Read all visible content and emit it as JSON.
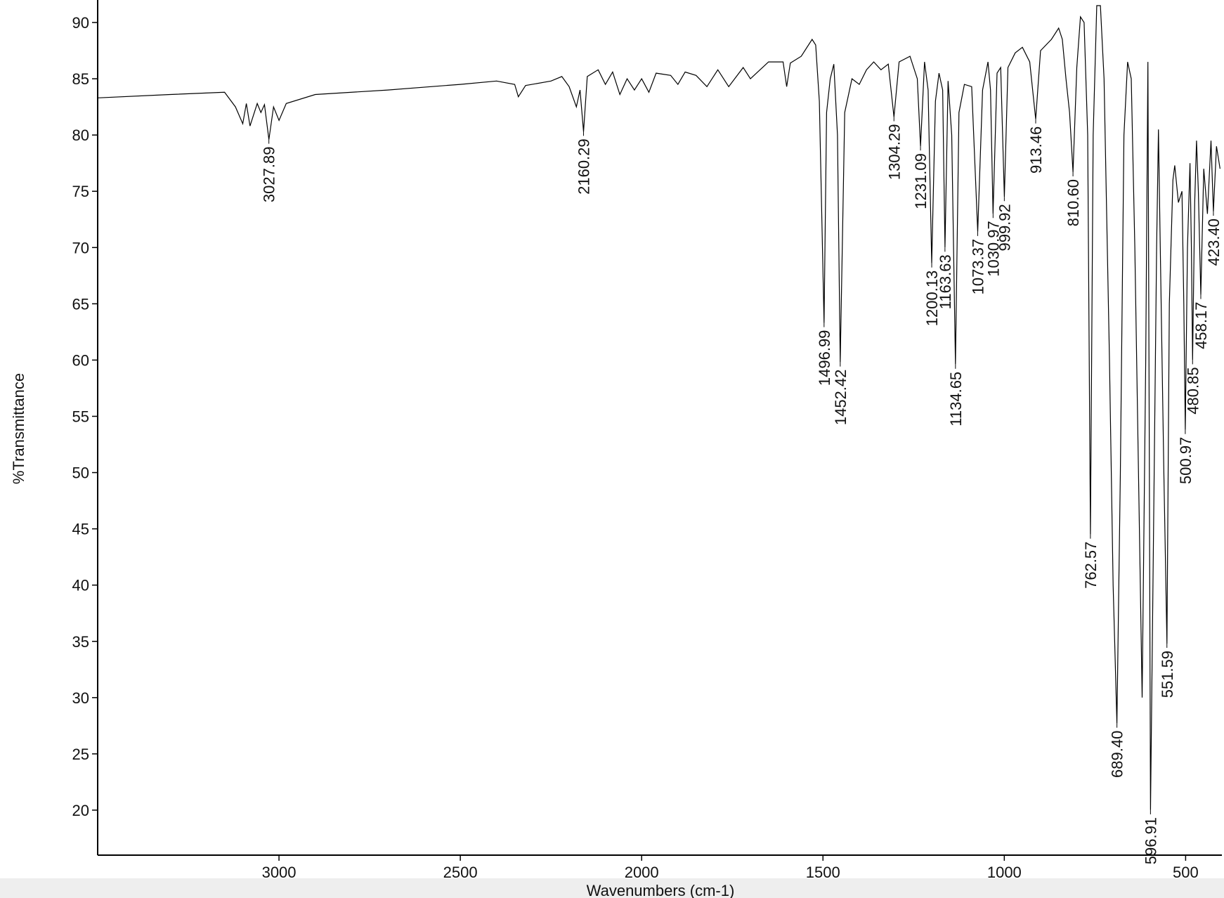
{
  "chart_data": {
    "type": "line",
    "x_label": "Wavenumbers (cm-1)",
    "y_label": "%Transmittance",
    "xlim": [
      3500,
      400
    ],
    "ylim": [
      16,
      92
    ],
    "xticks": [
      3000,
      2500,
      2000,
      1500,
      1000,
      500
    ],
    "yticks": [
      20,
      25,
      30,
      35,
      40,
      45,
      50,
      55,
      60,
      65,
      70,
      75,
      80,
      85,
      90
    ],
    "color": "#000000",
    "x": [
      3500,
      3300,
      3150,
      3120,
      3100,
      3090,
      3080,
      3060,
      3050,
      3040,
      3027.89,
      3015,
      3000,
      2980,
      2900,
      2700,
      2500,
      2400,
      2350,
      2340,
      2320,
      2250,
      2220,
      2200,
      2180,
      2170,
      2160.29,
      2150,
      2120,
      2100,
      2080,
      2060,
      2040,
      2020,
      2000,
      1980,
      1960,
      1920,
      1900,
      1880,
      1850,
      1820,
      1790,
      1760,
      1720,
      1700,
      1650,
      1610,
      1600,
      1590,
      1560,
      1530,
      1520,
      1510,
      1496.99,
      1490,
      1480,
      1470,
      1460,
      1452.42,
      1440,
      1420,
      1400,
      1380,
      1360,
      1340,
      1320,
      1304.29,
      1290,
      1260,
      1240,
      1231.09,
      1220,
      1210,
      1200.13,
      1190,
      1180,
      1170,
      1163.63,
      1155,
      1145,
      1134.65,
      1125,
      1110,
      1090,
      1073.37,
      1060,
      1045,
      1038,
      1030.97,
      1020,
      1010,
      999.92,
      990,
      970,
      950,
      930,
      913.46,
      900,
      870,
      850,
      840,
      830,
      820,
      810.6,
      800,
      790,
      780,
      770,
      762.57,
      755,
      745,
      735,
      725,
      710,
      700,
      689.4,
      680,
      670,
      660,
      650,
      640,
      630,
      620,
      610,
      604,
      600,
      596.91,
      590,
      580,
      575,
      570,
      560,
      551.59,
      545,
      535,
      530,
      520,
      510,
      505,
      500.97,
      495,
      488,
      484,
      480.85,
      475,
      470,
      465,
      458.17,
      450,
      440,
      430,
      423.4,
      415,
      405
    ],
    "values": [
      83.3,
      83.6,
      83.8,
      82.5,
      81.0,
      82.8,
      80.8,
      82.8,
      82.0,
      82.7,
      79.6,
      82.5,
      81.3,
      82.8,
      83.6,
      84.0,
      84.5,
      84.8,
      84.5,
      83.4,
      84.4,
      84.8,
      85.2,
      84.3,
      82.5,
      84.0,
      80.3,
      85.2,
      85.8,
      84.5,
      85.6,
      83.6,
      85.0,
      84.0,
      85.0,
      83.8,
      85.5,
      85.3,
      84.5,
      85.6,
      85.3,
      84.3,
      85.8,
      84.3,
      86.0,
      85.0,
      86.5,
      86.5,
      84.3,
      86.4,
      87.0,
      88.5,
      88.0,
      83,
      63.3,
      82,
      85,
      86.3,
      80,
      59.8,
      82,
      85,
      84.5,
      85.8,
      86.5,
      85.8,
      86.3,
      81.6,
      86.5,
      87.0,
      85.0,
      79,
      86.5,
      84,
      68.6,
      83,
      85.5,
      84,
      70,
      84.8,
      80,
      59.6,
      82,
      84.5,
      84.3,
      71.4,
      84,
      86.5,
      84,
      73,
      85.5,
      86,
      74.5,
      86,
      87.3,
      87.8,
      86.5,
      81.4,
      87.5,
      88.5,
      89.5,
      88.5,
      85,
      82,
      76.7,
      86,
      90.5,
      90,
      80,
      44.5,
      80,
      91.5,
      91.5,
      85,
      60,
      40,
      27.7,
      50,
      80,
      86.5,
      85,
      70,
      50,
      30,
      60,
      86.5,
      50,
      20,
      40,
      70,
      80.5,
      70,
      50,
      34.8,
      65,
      76,
      77.3,
      74,
      75,
      65,
      53.8,
      70,
      77.5,
      70,
      60,
      74,
      79.5,
      75,
      65.8,
      77,
      73,
      79.5,
      73.2,
      79,
      77
    ],
    "peak_x": [
      3027.89,
      2160.29,
      1496.99,
      1452.42,
      1304.29,
      1231.09,
      1200.13,
      1163.63,
      1134.65,
      1073.37,
      1030.97,
      999.92,
      913.46,
      810.6,
      762.57,
      689.4,
      596.91,
      551.59,
      500.97,
      480.85,
      458.17,
      423.4
    ],
    "peak_y": [
      79.6,
      80.3,
      63.3,
      59.8,
      81.6,
      79,
      68.6,
      70,
      59.6,
      71.4,
      73,
      74.5,
      81.4,
      76.7,
      44.5,
      27.7,
      20,
      34.8,
      53.8,
      60,
      65.8,
      73.2
    ],
    "peak_labels": [
      "3027.89",
      "2160.29",
      "1496.99",
      "1452.42",
      "1304.29",
      "1231.09",
      "1200.13",
      "1163.63",
      "1134.65",
      "1073.37",
      "1030.97",
      "999.92",
      "913.46",
      "810.60",
      "762.57",
      "689.40",
      "596.91",
      "551.59",
      "500.97",
      "480.85",
      "458.17",
      "423.40"
    ]
  }
}
